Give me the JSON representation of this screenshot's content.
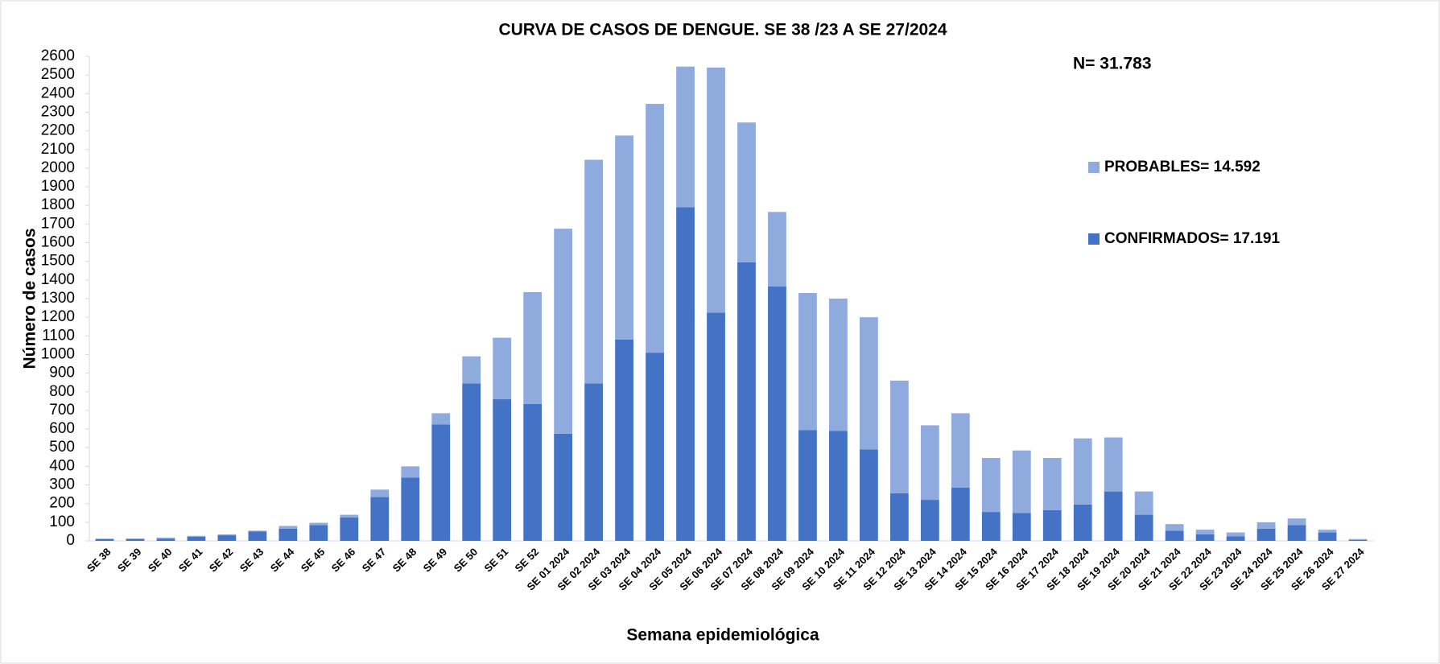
{
  "chart_data": {
    "type": "stacked_bar",
    "title": "CURVA DE CASOS DE DENGUE. SE 38 /23 A SE 27/2024",
    "annotation": "N= 31.783",
    "x_label": "Semana epidemiológica",
    "y_label": "Número de casos",
    "categories": [
      "SE 38",
      "SE 39",
      "SE 40",
      "SE 41",
      "SE 42",
      "SE 43",
      "SE 44",
      "SE 45",
      "SE 46",
      "SE 47",
      "SE 48",
      "SE 49",
      "SE 50",
      "SE 51",
      "SE 52",
      "SE 01 2024",
      "SE 02 2024",
      "SE 03 2024",
      "SE 04 2024",
      "SE 05 2024",
      "SE 06 2024",
      "SE 07 2024",
      "SE 08 2024",
      "SE 09 2024",
      "SE 10 2024",
      "SE 11 2024",
      "SE 12 2024",
      "SE 13 2024",
      "SE 14 2024",
      "SE 15 2024",
      "SE 16 2024",
      "SE 17 2024",
      "SE 18 2024",
      "SE 19 2024",
      "SE 20 2024",
      "SE 21 2024",
      "SE 22 2024",
      "SE 23 2024",
      "SE 24 2024",
      "SE 25 2024",
      "SE 26 2024",
      "SE 27 2024"
    ],
    "series": [
      {
        "name": "CONFIRMADOS= 17.191",
        "color": "#4472c4",
        "values": [
          10,
          10,
          12,
          22,
          30,
          50,
          65,
          85,
          125,
          235,
          340,
          625,
          845,
          760,
          735,
          575,
          845,
          1080,
          1010,
          1790,
          1225,
          1495,
          1365,
          595,
          590,
          490,
          255,
          220,
          285,
          155,
          150,
          165,
          195,
          265,
          140,
          55,
          35,
          25,
          65,
          85,
          45,
          5
        ]
      },
      {
        "name": "PROBABLES= 14.592",
        "color": "#8faadc",
        "values": [
          2,
          3,
          5,
          5,
          5,
          5,
          15,
          12,
          15,
          40,
          60,
          60,
          145,
          330,
          600,
          1100,
          1200,
          1095,
          1335,
          755,
          1315,
          750,
          400,
          735,
          710,
          710,
          605,
          400,
          400,
          290,
          335,
          280,
          355,
          290,
          125,
          35,
          25,
          20,
          35,
          35,
          15,
          5
        ]
      }
    ],
    "ylim": [
      0,
      2600
    ],
    "yticks": [
      0,
      100,
      200,
      300,
      400,
      500,
      600,
      700,
      800,
      900,
      1000,
      1100,
      1200,
      1300,
      1400,
      1500,
      1600,
      1700,
      1800,
      1900,
      2000,
      2100,
      2200,
      2300,
      2400,
      2500,
      2600
    ],
    "grid": false
  }
}
